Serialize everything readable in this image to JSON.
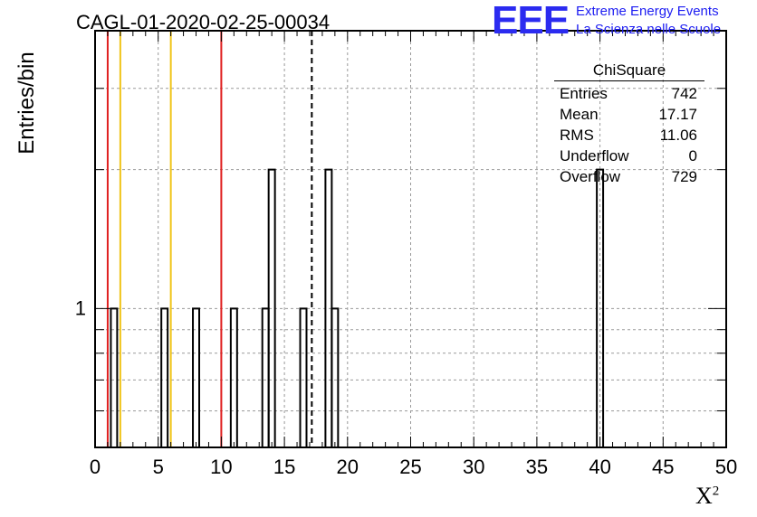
{
  "header": {
    "title": "CAGL-01-2020-02-25-00034",
    "logo_text": "EEE",
    "logo_line1": "Extreme Energy Events",
    "logo_line2": "La Scienza nelle Scuole"
  },
  "stats_box": {
    "title": "ChiSquare",
    "rows": [
      {
        "label": "Entries",
        "value": "742"
      },
      {
        "label": "Mean",
        "value": "17.17"
      },
      {
        "label": "RMS",
        "value": "11.06"
      },
      {
        "label": "Underflow",
        "value": "0"
      },
      {
        "label": "Overflow",
        "value": "729"
      }
    ]
  },
  "chart_data": {
    "type": "bar",
    "histogram": true,
    "y_scale": "log",
    "ylabel": "Entries/bin",
    "xlabel": "X",
    "xlabel_sup": "2",
    "xlim": [
      0,
      50
    ],
    "x_ticks": [
      0,
      5,
      10,
      15,
      20,
      25,
      30,
      35,
      40,
      45,
      50
    ],
    "y_tick_labels": [
      {
        "value": 1,
        "label": "1"
      }
    ],
    "grid": true,
    "bin_width": 0.5,
    "bins": [
      {
        "x": 1.5,
        "value": 1
      },
      {
        "x": 5.5,
        "value": 1
      },
      {
        "x": 8.0,
        "value": 1
      },
      {
        "x": 11.0,
        "value": 1
      },
      {
        "x": 13.5,
        "value": 1
      },
      {
        "x": 14.0,
        "value": 2
      },
      {
        "x": 16.5,
        "value": 1
      },
      {
        "x": 18.5,
        "value": 2
      },
      {
        "x": 19.0,
        "value": 1
      },
      {
        "x": 40.0,
        "value": 2
      }
    ],
    "vertical_lines": [
      {
        "x": 1.0,
        "color": "#e02020",
        "style": "solid"
      },
      {
        "x": 2.0,
        "color": "#f0c419",
        "style": "solid"
      },
      {
        "x": 6.0,
        "color": "#f0c419",
        "style": "solid"
      },
      {
        "x": 10.0,
        "color": "#e02020",
        "style": "solid"
      },
      {
        "x": 17.17,
        "color": "#000000",
        "style": "dashed"
      }
    ]
  }
}
